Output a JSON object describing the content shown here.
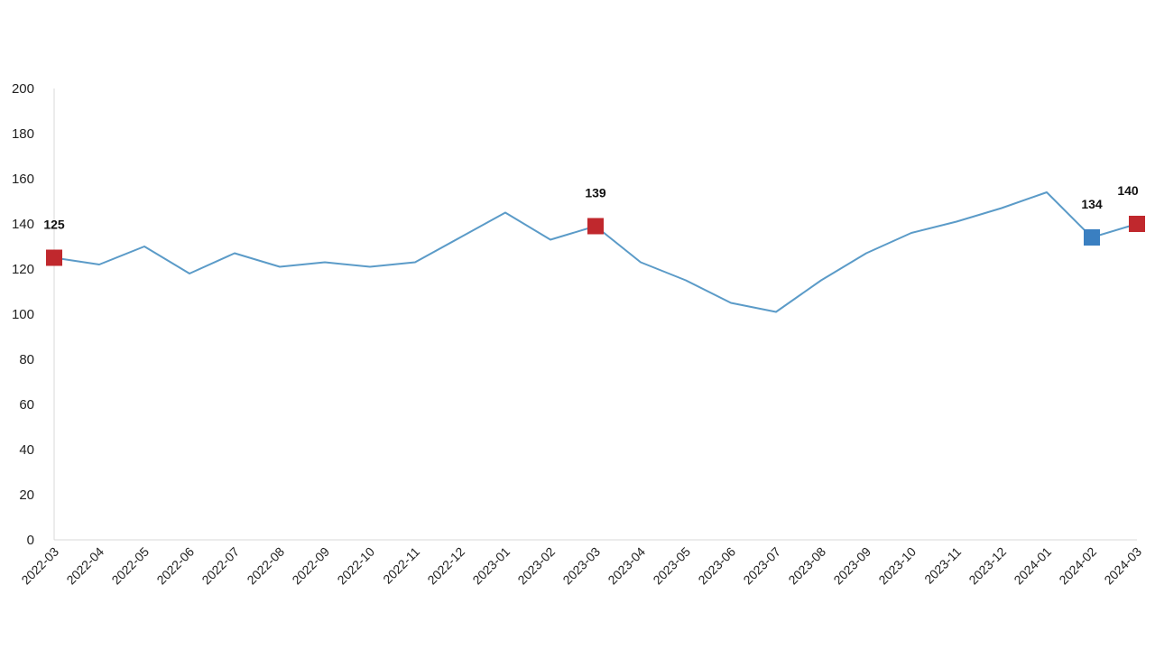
{
  "chart_data": {
    "type": "line",
    "title": "",
    "xlabel": "",
    "ylabel": "",
    "ylim": [
      0,
      200
    ],
    "yticks": [
      0,
      20,
      40,
      60,
      80,
      100,
      120,
      140,
      160,
      180,
      200
    ],
    "grid": false,
    "legend": "none",
    "categories": [
      "2022-03",
      "2022-04",
      "2022-05",
      "2022-06",
      "2022-07",
      "2022-08",
      "2022-09",
      "2022-10",
      "2022-11",
      "2022-12",
      "2023-01",
      "2023-02",
      "2023-03",
      "2023-04",
      "2023-05",
      "2023-06",
      "2023-07",
      "2023-08",
      "2023-09",
      "2023-10",
      "2023-11",
      "2023-12",
      "2024-01",
      "2024-02",
      "2024-03"
    ],
    "series": [
      {
        "values": [
          125,
          122,
          130,
          118,
          127,
          121,
          123,
          121,
          123,
          134,
          145,
          133,
          139,
          123,
          115,
          105,
          101,
          115,
          127,
          136,
          141,
          147,
          154,
          134,
          140
        ],
        "color": "#5b9bc8"
      }
    ],
    "highlights": [
      {
        "category": "2022-03",
        "value": 125,
        "label": "125",
        "color": "#c0282d"
      },
      {
        "category": "2023-03",
        "value": 139,
        "label": "139",
        "color": "#c0282d"
      },
      {
        "category": "2024-02",
        "value": 134,
        "label": "134",
        "color": "#3a7fc1"
      },
      {
        "category": "2024-03",
        "value": 140,
        "label": "140",
        "color": "#c0282d"
      }
    ]
  }
}
